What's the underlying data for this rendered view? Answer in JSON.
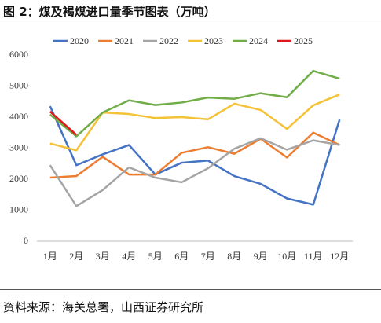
{
  "title": "图 2：煤及褐煤进口量季节图表（万吨）",
  "source": "资料来源：海关总署，山西证券研究所",
  "chart_data": {
    "type": "line",
    "categories": [
      "1月",
      "2月",
      "3月",
      "4月",
      "5月",
      "6月",
      "7月",
      "8月",
      "9月",
      "10月",
      "11月",
      "12月"
    ],
    "ylim": [
      0,
      6000
    ],
    "yticks": [
      0,
      1000,
      2000,
      3000,
      4000,
      5000,
      6000
    ],
    "series": [
      {
        "name": "2020",
        "color": "#4472c4",
        "values": [
          4350,
          2450,
          2800,
          3100,
          2150,
          2530,
          2600,
          2100,
          1850,
          1380,
          1180,
          3920
        ]
      },
      {
        "name": "2021",
        "color": "#ed7d31",
        "values": [
          2050,
          2100,
          2720,
          2150,
          2150,
          2850,
          3030,
          2820,
          3300,
          2700,
          3500,
          3100
        ]
      },
      {
        "name": "2022",
        "color": "#a5a5a5",
        "values": [
          2450,
          1130,
          1650,
          2380,
          2050,
          1900,
          2350,
          2980,
          3320,
          2950,
          3250,
          3100
        ]
      },
      {
        "name": "2023",
        "color": "#f5c136",
        "values": [
          3150,
          2930,
          4150,
          4100,
          3970,
          4000,
          3930,
          4430,
          4230,
          3620,
          4380,
          4730
        ]
      },
      {
        "name": "2024",
        "color": "#70ad47",
        "values": [
          4080,
          3380,
          4150,
          4540,
          4390,
          4470,
          4630,
          4590,
          4770,
          4640,
          5490,
          5240
        ]
      },
      {
        "name": "2025",
        "color": "#e0161b",
        "values": [
          4180,
          3430,
          null,
          null,
          null,
          null,
          null,
          null,
          null,
          null,
          null,
          null
        ]
      }
    ]
  }
}
